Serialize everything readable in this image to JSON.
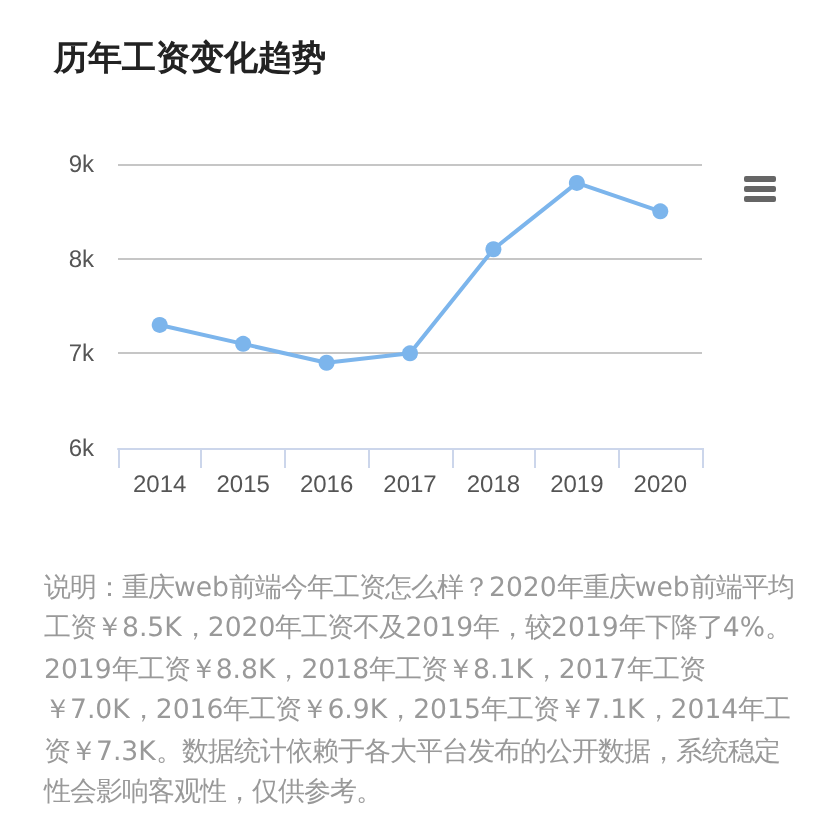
{
  "chart_data": {
    "type": "line",
    "title": "历年工资变化趋势",
    "categories": [
      "2014",
      "2015",
      "2016",
      "2017",
      "2018",
      "2019",
      "2020"
    ],
    "values": [
      7.3,
      7.1,
      6.9,
      7.0,
      8.1,
      8.8,
      8.5
    ],
    "color": "#7cb5ec",
    "ylim": [
      6,
      9
    ],
    "yticks": [
      {
        "value": 6,
        "label": "6k"
      },
      {
        "value": 7,
        "label": "7k"
      },
      {
        "value": 8,
        "label": "8k"
      },
      {
        "value": 9,
        "label": "9k"
      }
    ],
    "grid": "y",
    "marker": "circle",
    "line_style": "solid",
    "annotations": [
      "说明：重庆web前端今年工资怎么样？2020年重庆web前端平均工资￥8.5K，2020年工资不及2019年，较2019年下降了4%。2019年工资￥8.8K，2018年工资￥8.1K，2017年工资￥7.0K，2016年工资￥6.9K，2015年工资￥7.1K，2014年工资￥7.3K。数据统计依赖于各大平台发布的公开数据，系统稳定性会影响客观性，仅供参考。"
    ]
  }
}
